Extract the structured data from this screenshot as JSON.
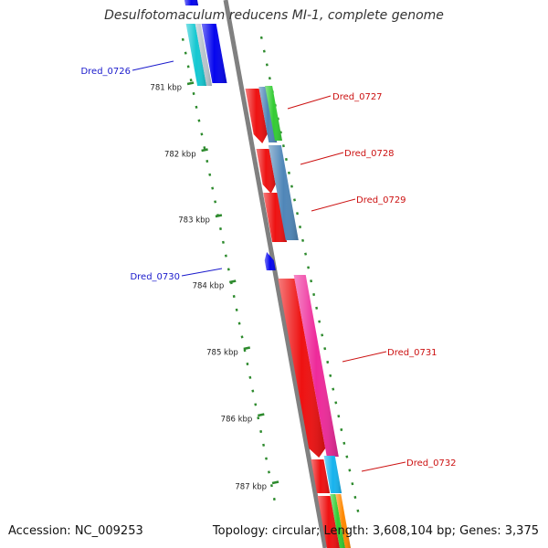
{
  "title": "Desulfotomaculum reducens MI-1, complete genome",
  "accession": "Accession: NC_009253",
  "summary": "Topology: circular; Length: 3,608,104 bp; Genes: 3,375",
  "colors": {
    "backbone": "#808080",
    "ruler_tick": "#2d8a2d",
    "label_reverse": "#1a1acc",
    "label_forward": "#cc1111"
  },
  "ruler": [
    "781 kbp",
    "782 kbp",
    "783 kbp",
    "784 kbp",
    "785 kbp",
    "786 kbp",
    "787 kbp"
  ],
  "gene_labels": [
    {
      "id": "lbl-0726",
      "text": "Dred_0726",
      "strand": "reverse"
    },
    {
      "id": "lbl-0727",
      "text": "Dred_0727",
      "strand": "forward"
    },
    {
      "id": "lbl-0728",
      "text": "Dred_0728",
      "strand": "forward"
    },
    {
      "id": "lbl-0729",
      "text": "Dred_0729",
      "strand": "forward"
    },
    {
      "id": "lbl-0730",
      "text": "Dred_0730",
      "strand": "reverse"
    },
    {
      "id": "lbl-0731",
      "text": "Dred_0731",
      "strand": "forward"
    },
    {
      "id": "lbl-0732",
      "text": "Dred_0732",
      "strand": "forward"
    }
  ]
}
